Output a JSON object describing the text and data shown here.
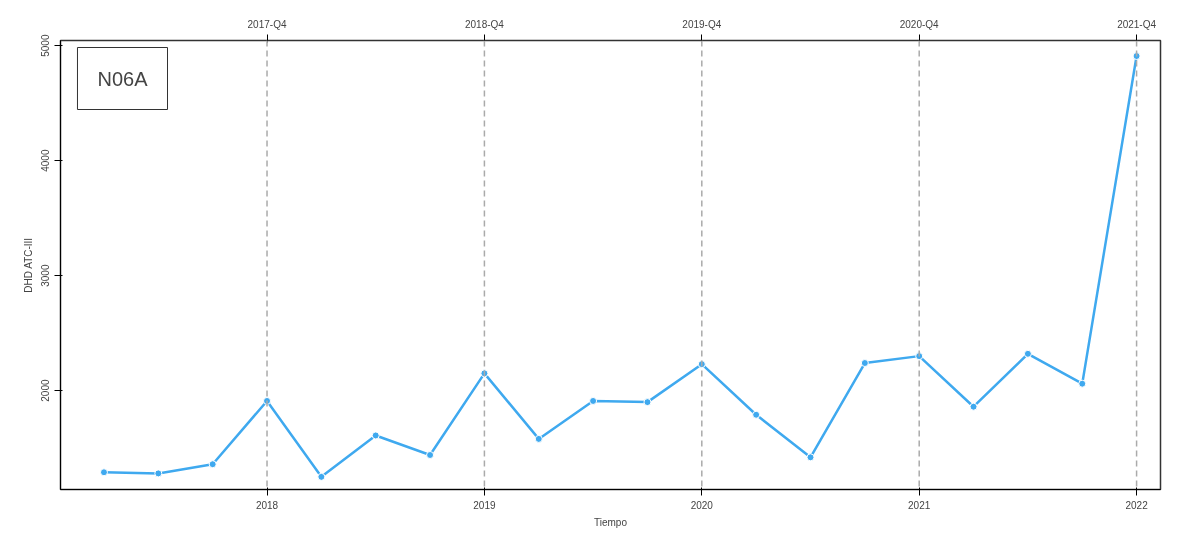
{
  "chart_data": {
    "type": "line",
    "title": "N06A",
    "xlabel": "Tiempo",
    "ylabel": "DHD ATC-III",
    "x": [
      2017.25,
      2017.5,
      2017.75,
      2018,
      2018.25,
      2018.5,
      2018.75,
      2019,
      2019.25,
      2019.5,
      2019.75,
      2020,
      2020.25,
      2020.5,
      2020.75,
      2021,
      2021.25,
      2021.5,
      2021.75,
      2022
    ],
    "series": [
      {
        "color": "#3fa9ef",
        "values": [
          1290,
          1280,
          1360,
          1910,
          1250,
          1610,
          1440,
          2150,
          1580,
          1910,
          1900,
          2230,
          1790,
          1420,
          2240,
          2300,
          1860,
          2320,
          2060,
          4910
        ]
      }
    ],
    "xlim": [
      2017.05,
      2022.11
    ],
    "xticks": [
      2018,
      2019,
      2020,
      2021,
      2022
    ],
    "ylim": [
      1140,
      5045
    ],
    "yticks": [
      2000,
      3000,
      4000,
      5000
    ],
    "ref_lines": [
      {
        "axis": "x",
        "value": 2018,
        "label": "2017-Q4",
        "color": "#aaaaaa",
        "line_style": "dashed"
      },
      {
        "axis": "x",
        "value": 2019,
        "label": "2018-Q4",
        "color": "#aaaaaa",
        "line_style": "dashed"
      },
      {
        "axis": "x",
        "value": 2020,
        "label": "2019-Q4",
        "color": "#aaaaaa",
        "line_style": "dashed"
      },
      {
        "axis": "x",
        "value": 2021,
        "label": "2020-Q4",
        "color": "#aaaaaa",
        "line_style": "dashed"
      },
      {
        "axis": "x",
        "value": 2022,
        "label": "2021-Q4",
        "color": "#aaaaaa",
        "line_style": "dashed"
      }
    ],
    "marker": "circle",
    "line_style": "solid"
  }
}
